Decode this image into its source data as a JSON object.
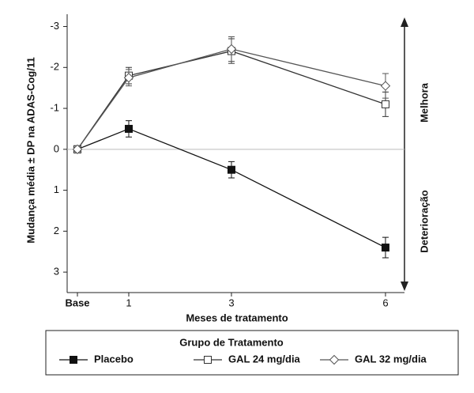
{
  "chart_data": {
    "type": "line",
    "y_label": "Mudança média ± DP na ADAS-Cog/11",
    "x_label": "Meses de tratamento",
    "x": [
      0,
      1,
      3,
      6
    ],
    "xlim": [
      -0.2,
      6.37
    ],
    "xticks": [
      {
        "value": 0,
        "label": "Base"
      },
      1,
      3,
      6
    ],
    "ylim": [
      3.5,
      -3.3
    ],
    "yticks": [
      -3,
      -2,
      -1,
      0,
      1,
      2,
      3
    ],
    "reference_line": 0,
    "annotations": {
      "up": "Melhora",
      "down": "Deterioração"
    },
    "legend_title": "Grupo de Tratamento",
    "series": [
      {
        "name": "Placebo",
        "color": "#111111",
        "marker": "filled-square",
        "values": [
          0,
          -0.5,
          0.5,
          2.4
        ],
        "errors": [
          0.05,
          0.2,
          0.2,
          0.25
        ]
      },
      {
        "name": "GAL 24 mg/dia",
        "color": "#333333",
        "marker": "open-square",
        "values": [
          0,
          -1.8,
          -2.4,
          -1.1
        ],
        "errors": [
          0.05,
          0.2,
          0.3,
          0.3
        ]
      },
      {
        "name": "GAL 32 mg/dia",
        "color": "#555555",
        "marker": "open-diamond",
        "values": [
          0,
          -1.75,
          -2.45,
          -1.55
        ],
        "errors": [
          0.05,
          0.2,
          0.3,
          0.3
        ]
      }
    ]
  }
}
